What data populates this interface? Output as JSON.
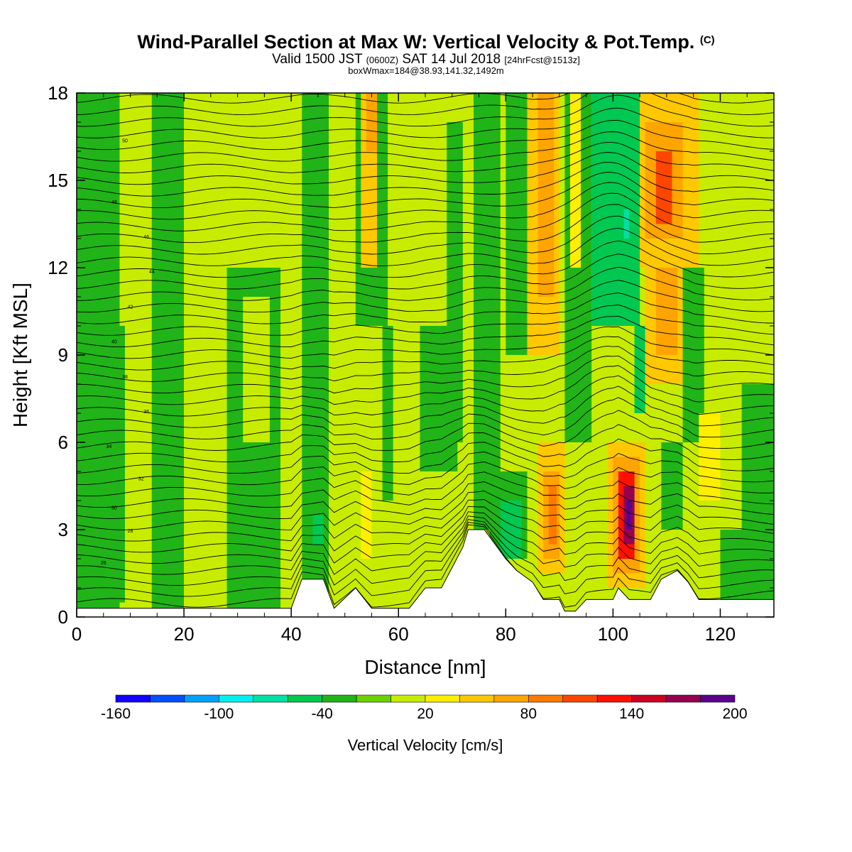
{
  "title": {
    "main": "Wind-Parallel Section at Max W: Vertical Velocity & Pot.Temp.",
    "copyright": "(C)",
    "valid_prefix": "Valid 1500 JST",
    "valid_utc": "(0600Z)",
    "valid_date": "SAT 14 Jul 2018",
    "forecast": "[24hrFcst@1513z]",
    "boxwmax": "boxWmax=184@38.93,141.32,1492m"
  },
  "chart_data": {
    "type": "heatmap",
    "xlabel": "Distance [nm]",
    "ylabel": "Height [Kft MSL]",
    "xlim": [
      0,
      130
    ],
    "ylim": [
      0,
      18
    ],
    "x_ticks": [
      "0",
      "20",
      "40",
      "60",
      "80",
      "100",
      "120"
    ],
    "y_ticks": [
      "0",
      "3",
      "6",
      "9",
      "12",
      "15",
      "18"
    ],
    "colorbar": {
      "label": "Vertical Velocity [cm/s]",
      "range": [
        -160,
        200
      ],
      "tick_labels": [
        "-160",
        "-100",
        "-40",
        "20",
        "80",
        "140",
        "200"
      ],
      "colors": [
        "#1400ff",
        "#0050ff",
        "#00a0ff",
        "#00f0f0",
        "#00e0a0",
        "#00c850",
        "#20b418",
        "#6ad200",
        "#c8ec00",
        "#ffee00",
        "#ffc800",
        "#ffa400",
        "#ff7a00",
        "#ff4600",
        "#ff1000",
        "#cc0020",
        "#960050",
        "#5a0090"
      ]
    },
    "vertical_velocity_cells": [
      {
        "x": [
          0,
          130
        ],
        "y": [
          0,
          18
        ],
        "w": 0
      },
      {
        "x": [
          0,
          8
        ],
        "y": [
          0,
          18
        ],
        "w": -25
      },
      {
        "x": [
          2,
          12
        ],
        "y": [
          0.5,
          10
        ],
        "w": -30
      },
      {
        "x": [
          9,
          14
        ],
        "y": [
          0,
          18
        ],
        "w": 8
      },
      {
        "x": [
          14,
          20
        ],
        "y": [
          0,
          18
        ],
        "w": -25
      },
      {
        "x": [
          20,
          30
        ],
        "y": [
          0,
          18
        ],
        "w": 5
      },
      {
        "x": [
          28,
          38
        ],
        "y": [
          0,
          12
        ],
        "w": -30
      },
      {
        "x": [
          31,
          36
        ],
        "y": [
          6,
          11
        ],
        "w": 5
      },
      {
        "x": [
          42,
          47
        ],
        "y": [
          0,
          18
        ],
        "w": -35
      },
      {
        "x": [
          44,
          46
        ],
        "y": [
          2.5,
          3.5
        ],
        "w": -45
      },
      {
        "x": [
          53,
          55
        ],
        "y": [
          2,
          5
        ],
        "w": 32
      },
      {
        "x": [
          52,
          58
        ],
        "y": [
          10,
          18
        ],
        "w": -30
      },
      {
        "x": [
          53,
          56
        ],
        "y": [
          12,
          18
        ],
        "w": 50
      },
      {
        "x": [
          54,
          56
        ],
        "y": [
          16,
          18
        ],
        "w": 70
      },
      {
        "x": [
          57,
          59
        ],
        "y": [
          4,
          10
        ],
        "w": -30
      },
      {
        "x": [
          64,
          71
        ],
        "y": [
          5,
          10
        ],
        "w": -28
      },
      {
        "x": [
          69,
          72
        ],
        "y": [
          6,
          17
        ],
        "w": -25
      },
      {
        "x": [
          74,
          79
        ],
        "y": [
          3,
          18
        ],
        "w": -25
      },
      {
        "x": [
          77,
          84
        ],
        "y": [
          2,
          5
        ],
        "w": -40
      },
      {
        "x": [
          79,
          83
        ],
        "y": [
          2,
          4
        ],
        "w": -45
      },
      {
        "x": [
          80,
          84
        ],
        "y": [
          9,
          18
        ],
        "w": -30
      },
      {
        "x": [
          84,
          90
        ],
        "y": [
          9,
          18
        ],
        "w": 42
      },
      {
        "x": [
          86,
          89
        ],
        "y": [
          11,
          18
        ],
        "w": 72
      },
      {
        "x": [
          86,
          91
        ],
        "y": [
          1.5,
          6
        ],
        "w": 40
      },
      {
        "x": [
          87,
          90
        ],
        "y": [
          2,
          5
        ],
        "w": 75
      },
      {
        "x": [
          88,
          89.5
        ],
        "y": [
          2.5,
          4.5
        ],
        "w": 95
      },
      {
        "x": [
          91,
          96
        ],
        "y": [
          6,
          18
        ],
        "w": -30
      },
      {
        "x": [
          92,
          94
        ],
        "y": [
          12,
          18
        ],
        "w": 35
      },
      {
        "x": [
          96,
          105
        ],
        "y": [
          10,
          18
        ],
        "w": -45
      },
      {
        "x": [
          99,
          104
        ],
        "y": [
          12,
          17
        ],
        "w": -60
      },
      {
        "x": [
          102,
          103
        ],
        "y": [
          13,
          14
        ],
        "w": -75
      },
      {
        "x": [
          104,
          106
        ],
        "y": [
          7,
          10
        ],
        "w": -55
      },
      {
        "x": [
          99,
          106
        ],
        "y": [
          1,
          6
        ],
        "w": 40
      },
      {
        "x": [
          100,
          105
        ],
        "y": [
          1.5,
          5.5
        ],
        "w": 75
      },
      {
        "x": [
          101,
          104
        ],
        "y": [
          2,
          5
        ],
        "w": 120
      },
      {
        "x": [
          102,
          104
        ],
        "y": [
          2.5,
          4.5
        ],
        "w": 165
      },
      {
        "x": [
          102.5,
          103.5
        ],
        "y": [
          3,
          4
        ],
        "w": 190
      },
      {
        "x": [
          105,
          116
        ],
        "y": [
          12,
          18
        ],
        "w": 45
      },
      {
        "x": [
          106,
          113
        ],
        "y": [
          13,
          17
        ],
        "w": 75
      },
      {
        "x": [
          108,
          111
        ],
        "y": [
          13.5,
          16
        ],
        "w": 100
      },
      {
        "x": [
          106,
          113
        ],
        "y": [
          8,
          13
        ],
        "w": 40
      },
      {
        "x": [
          108,
          112
        ],
        "y": [
          9,
          12
        ],
        "w": 60
      },
      {
        "x": [
          109,
          113
        ],
        "y": [
          3,
          6
        ],
        "w": -40
      },
      {
        "x": [
          113,
          117
        ],
        "y": [
          6,
          12
        ],
        "w": -30
      },
      {
        "x": [
          116,
          120
        ],
        "y": [
          4,
          7
        ],
        "w": 28
      },
      {
        "x": [
          118,
          126
        ],
        "y": [
          8,
          14
        ],
        "w": 5
      },
      {
        "x": [
          120,
          130
        ],
        "y": [
          0,
          3
        ],
        "w": -28
      },
      {
        "x": [
          124,
          130
        ],
        "y": [
          3,
          8
        ],
        "w": -25
      }
    ],
    "terrain": {
      "x": [
        0,
        40,
        42,
        46,
        48,
        52,
        55,
        60,
        62,
        65,
        68,
        72,
        73,
        76,
        78,
        80,
        82,
        85,
        87,
        90,
        91,
        93,
        95,
        100,
        101,
        103,
        105,
        107,
        109,
        112,
        114,
        116,
        120,
        130
      ],
      "height": [
        0.3,
        0.3,
        1.3,
        1.3,
        0.3,
        1.0,
        0.3,
        0.3,
        0.3,
        1.0,
        1.0,
        2.4,
        3.0,
        3.0,
        2.5,
        2.0,
        1.6,
        1.2,
        0.6,
        0.6,
        0.2,
        0.2,
        0.6,
        0.6,
        1.0,
        0.6,
        0.6,
        0.6,
        1.3,
        1.6,
        1.2,
        0.6,
        0.6,
        0.6
      ]
    },
    "pot_temp_labels": [
      {
        "x": 5,
        "y": 1.8,
        "text": "26"
      },
      {
        "x": 10,
        "y": 2.9,
        "text": "28"
      },
      {
        "x": 7,
        "y": 3.7,
        "text": "30"
      },
      {
        "x": 12,
        "y": 4.7,
        "text": "32"
      },
      {
        "x": 6,
        "y": 5.8,
        "text": "34"
      },
      {
        "x": 13,
        "y": 7.0,
        "text": "36"
      },
      {
        "x": 9,
        "y": 8.2,
        "text": "38"
      },
      {
        "x": 7,
        "y": 9.4,
        "text": "40"
      },
      {
        "x": 10,
        "y": 10.6,
        "text": "42"
      },
      {
        "x": 14,
        "y": 11.8,
        "text": "44"
      },
      {
        "x": 13,
        "y": 13.0,
        "text": "46"
      },
      {
        "x": 7,
        "y": 14.2,
        "text": "48"
      },
      {
        "x": 9,
        "y": 16.3,
        "text": "50"
      }
    ]
  }
}
